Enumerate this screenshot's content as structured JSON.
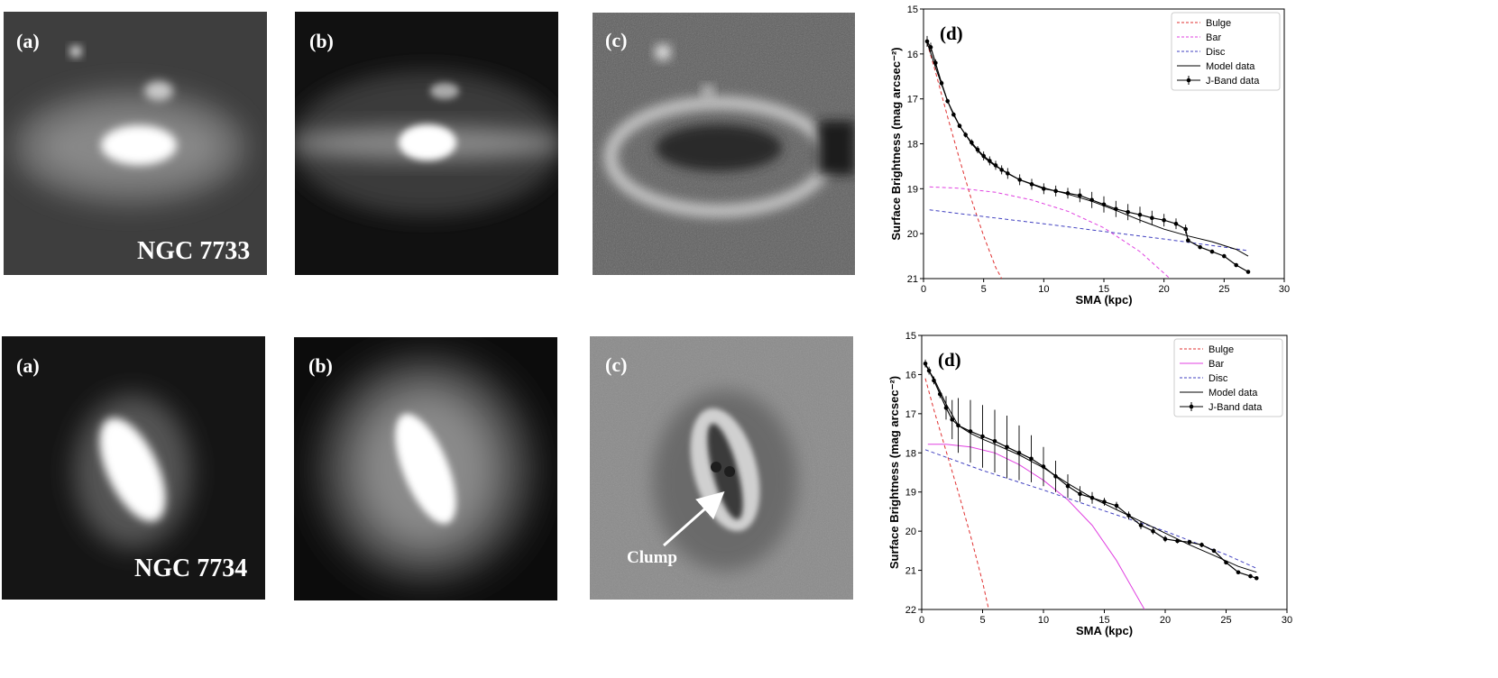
{
  "galaxies": [
    {
      "name": "NGC 7733",
      "panel_labels": {
        "a": "(a)",
        "b": "(b)",
        "c": "(c)"
      }
    },
    {
      "name": "NGC 7734",
      "panel_labels": {
        "a": "(a)",
        "b": "(b)",
        "c": "(c)"
      },
      "annotation": "Clump"
    }
  ],
  "chart_data": [
    {
      "type": "line",
      "panel_label": "(d)",
      "xlabel": "SMA (kpc)",
      "ylabel": "Surface Brightness (mag arcsec⁻²)",
      "xlim": [
        0,
        30
      ],
      "ylim": [
        21,
        15
      ],
      "y_inverted": true,
      "xticks": [
        0,
        5,
        10,
        15,
        20,
        25,
        30
      ],
      "yticks": [
        15,
        16,
        17,
        18,
        19,
        20,
        21
      ],
      "grid": false,
      "legend_position": "top-right",
      "series": [
        {
          "name": "Bulge",
          "style": "dashed",
          "color": "#e03030",
          "x": [
            0.3,
            1,
            2,
            3,
            4,
            5,
            6,
            6.5
          ],
          "y": [
            15.75,
            16.4,
            17.4,
            18.35,
            19.25,
            20.05,
            20.75,
            21.0
          ]
        },
        {
          "name": "Bar",
          "style": "dashed",
          "color": "#e040e0",
          "x": [
            0.5,
            3,
            6,
            9,
            12,
            15,
            18,
            20.5
          ],
          "y": [
            18.96,
            18.99,
            19.08,
            19.25,
            19.5,
            19.87,
            20.4,
            21.0
          ]
        },
        {
          "name": "Disc",
          "style": "dashed",
          "color": "#4040c0",
          "x": [
            0.5,
            5,
            10,
            15,
            20,
            25,
            27
          ],
          "y": [
            19.47,
            19.62,
            19.78,
            19.95,
            20.12,
            20.3,
            20.38
          ]
        },
        {
          "name": "Model data",
          "style": "solid",
          "color": "#000000",
          "x": [
            0.3,
            1,
            2,
            3,
            4,
            5,
            6,
            8,
            10,
            12,
            14,
            16,
            18,
            20,
            22,
            24,
            26,
            27
          ],
          "y": [
            15.75,
            16.3,
            17.05,
            17.6,
            18.0,
            18.3,
            18.5,
            18.8,
            18.98,
            19.12,
            19.28,
            19.48,
            19.7,
            19.9,
            20.05,
            20.18,
            20.35,
            20.5
          ]
        },
        {
          "name": "J-Band data",
          "style": "points",
          "color": "#000000",
          "x": [
            0.3,
            0.6,
            1,
            1.5,
            2,
            2.5,
            3,
            3.5,
            4,
            4.5,
            5,
            5.5,
            6,
            6.5,
            7,
            8,
            9,
            10,
            11,
            12,
            13,
            14,
            15,
            16,
            17,
            18,
            19,
            20,
            21,
            21.8,
            22,
            23,
            24,
            25,
            26,
            27
          ],
          "y": [
            15.72,
            15.85,
            16.2,
            16.65,
            17.05,
            17.35,
            17.6,
            17.8,
            17.97,
            18.13,
            18.27,
            18.38,
            18.48,
            18.58,
            18.66,
            18.8,
            18.9,
            19.0,
            19.05,
            19.1,
            19.15,
            19.25,
            19.35,
            19.45,
            19.52,
            19.58,
            19.65,
            19.7,
            19.78,
            19.9,
            20.15,
            20.3,
            20.4,
            20.5,
            20.7,
            20.85
          ],
          "yerr": [
            0.12,
            0.1,
            0.08,
            0.06,
            0.05,
            0.05,
            0.05,
            0.06,
            0.07,
            0.08,
            0.1,
            0.1,
            0.1,
            0.1,
            0.12,
            0.12,
            0.12,
            0.12,
            0.12,
            0.12,
            0.15,
            0.18,
            0.18,
            0.18,
            0.18,
            0.18,
            0.16,
            0.14,
            0.12,
            0.1,
            0.05,
            0.04,
            0.04,
            0.04,
            0.04,
            0.04
          ]
        }
      ]
    },
    {
      "type": "line",
      "panel_label": "(d)",
      "xlabel": "SMA (kpc)",
      "ylabel": "Surface Brightness (mag arcsec⁻²)",
      "xlim": [
        0,
        30
      ],
      "ylim": [
        22,
        15
      ],
      "y_inverted": true,
      "xticks": [
        0,
        5,
        10,
        15,
        20,
        25,
        30
      ],
      "yticks": [
        15,
        16,
        17,
        18,
        19,
        20,
        21,
        22
      ],
      "grid": false,
      "legend_position": "top-right",
      "series": [
        {
          "name": "Bulge",
          "style": "dashed",
          "color": "#e03030",
          "x": [
            0.3,
            1,
            2,
            3,
            4,
            5,
            5.5
          ],
          "y": [
            16.1,
            16.9,
            17.95,
            19.0,
            20.1,
            21.3,
            22.0
          ]
        },
        {
          "name": "Bar",
          "style": "solid",
          "color": "#e040e0",
          "x": [
            0.5,
            2,
            4,
            6,
            8,
            10,
            12,
            14,
            16,
            18.3
          ],
          "y": [
            17.78,
            17.78,
            17.85,
            18.0,
            18.3,
            18.7,
            19.2,
            19.85,
            20.75,
            22.0
          ]
        },
        {
          "name": "Disc",
          "style": "dashed",
          "color": "#4040c0",
          "x": [
            0.3,
            5,
            10,
            15,
            20,
            25,
            27.5
          ],
          "y": [
            17.92,
            18.45,
            18.95,
            19.48,
            20.0,
            20.6,
            20.95
          ]
        },
        {
          "name": "Model data",
          "style": "solid",
          "color": "#000000",
          "x": [
            0.3,
            1,
            2,
            3,
            4,
            5,
            6,
            8,
            10,
            12,
            14,
            16,
            18,
            20,
            22,
            24,
            26,
            27.5
          ],
          "y": [
            15.75,
            16.1,
            16.75,
            17.3,
            17.5,
            17.65,
            17.78,
            18.05,
            18.38,
            18.78,
            19.15,
            19.45,
            19.75,
            20.05,
            20.35,
            20.62,
            20.9,
            21.05
          ]
        },
        {
          "name": "J-Band data",
          "style": "points",
          "color": "#000000",
          "x": [
            0.3,
            0.6,
            1,
            1.5,
            2,
            2.5,
            3,
            4,
            5,
            6,
            7,
            8,
            9,
            10,
            11,
            12,
            13,
            14,
            15,
            16,
            17,
            18,
            19,
            20,
            21,
            22,
            23,
            24,
            25,
            26,
            27,
            27.5
          ],
          "y": [
            15.72,
            15.9,
            16.15,
            16.5,
            16.85,
            17.15,
            17.3,
            17.45,
            17.58,
            17.7,
            17.85,
            18.0,
            18.15,
            18.35,
            18.6,
            18.85,
            19.05,
            19.15,
            19.25,
            19.35,
            19.6,
            19.85,
            20.0,
            20.2,
            20.25,
            20.28,
            20.35,
            20.5,
            20.8,
            21.05,
            21.15,
            21.2
          ]
        },
        {
          "name": "J-Band error",
          "style": "errorbars",
          "color": "#000000",
          "yerr": [
            0.1,
            0.1,
            0.1,
            0.1,
            0.3,
            0.5,
            0.7,
            0.8,
            0.8,
            0.8,
            0.8,
            0.7,
            0.6,
            0.5,
            0.4,
            0.3,
            0.2,
            0.15,
            0.1,
            0.1,
            0.1,
            0.1,
            0.08,
            0.08,
            0.06,
            0.06,
            0.06,
            0.05,
            0.05,
            0.05,
            0.05,
            0.05
          ]
        }
      ]
    }
  ]
}
